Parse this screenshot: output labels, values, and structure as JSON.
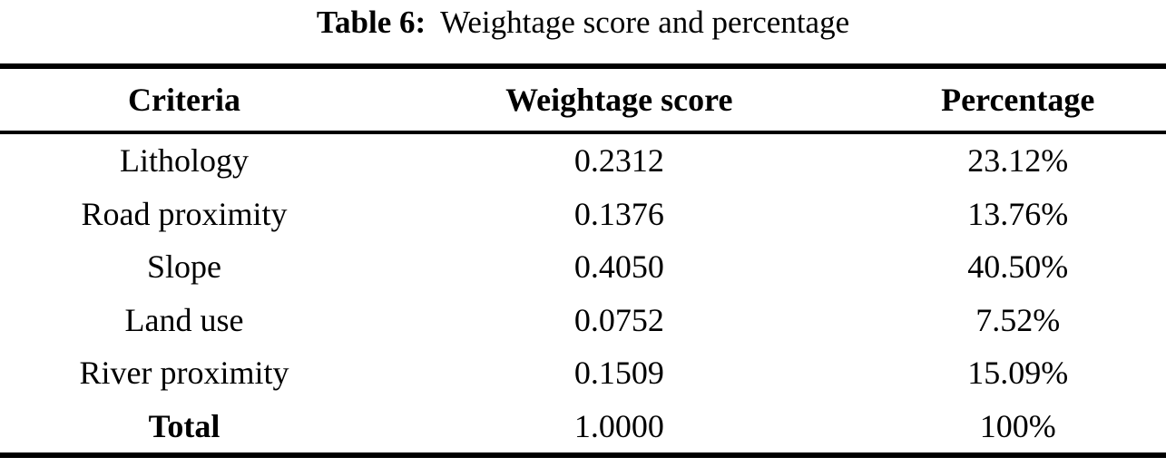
{
  "caption": {
    "label": "Table 6:",
    "text": "Weightage score and percentage"
  },
  "table": {
    "columns": {
      "criteria": "Criteria",
      "score": "Weightage score",
      "percentage": "Percentage"
    },
    "rows": [
      {
        "criteria": "Lithology",
        "score": "0.2312",
        "percentage": "23.12%"
      },
      {
        "criteria": "Road proximity",
        "score": "0.1376",
        "percentage": "13.76%"
      },
      {
        "criteria": "Slope",
        "score": "0.4050",
        "percentage": "40.50%"
      },
      {
        "criteria": "Land use",
        "score": "0.0752",
        "percentage": "7.52%"
      },
      {
        "criteria": "River proximity",
        "score": "0.1509",
        "percentage": "15.09%"
      },
      {
        "criteria": "Total",
        "score": "1.0000",
        "percentage": "100%"
      }
    ]
  },
  "colors": {
    "text": "#000000",
    "background": "#ffffff",
    "rule": "#000000"
  },
  "chart_data": {
    "type": "table",
    "title": "Table 6: Weightage score and percentage",
    "categories": [
      "Lithology",
      "Road proximity",
      "Slope",
      "Land use",
      "River proximity",
      "Total"
    ],
    "series": [
      {
        "name": "Weightage score",
        "values": [
          0.2312,
          0.1376,
          0.405,
          0.0752,
          0.1509,
          1.0
        ]
      },
      {
        "name": "Percentage",
        "values": [
          23.12,
          13.76,
          40.5,
          7.52,
          15.09,
          100
        ]
      }
    ]
  }
}
